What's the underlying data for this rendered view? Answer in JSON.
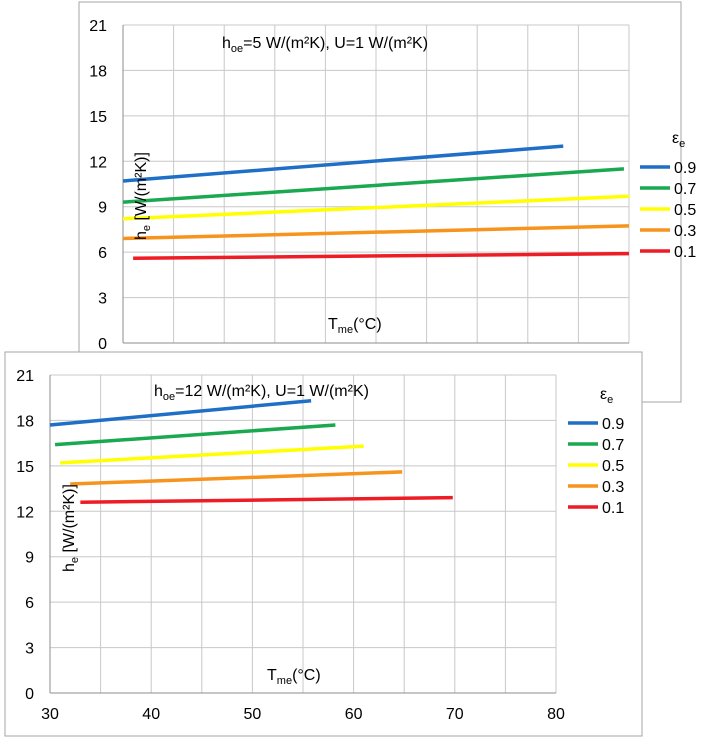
{
  "chart_data": [
    {
      "type": "line",
      "title": "",
      "annotation": {
        "h": "h",
        "sub": "oe",
        "text": "=5 W/(m²K), U=1  W/(m²K)"
      },
      "ylabel": {
        "h": "h",
        "sub": "e",
        "text": " [W/(m²K)]"
      },
      "xlabel": {
        "t": "T",
        "sub": "me",
        "text": "(°C)"
      },
      "xlim": [
        30,
        80
      ],
      "ylim": [
        0,
        21
      ],
      "yticks": [
        "0",
        "3",
        "6",
        "9",
        "12",
        "15",
        "18",
        "21"
      ],
      "xticks": [],
      "grid": true,
      "legend": {
        "title": "ε",
        "title_sub": "e",
        "placement": "right"
      },
      "series": [
        {
          "name": "0.9",
          "color": "#1f6fc6",
          "x": [
            30,
            73.5
          ],
          "y": [
            10.7,
            13.0
          ]
        },
        {
          "name": "0.7",
          "color": "#1aa850",
          "x": [
            30,
            79.5
          ],
          "y": [
            9.3,
            11.5
          ]
        },
        {
          "name": "0.5",
          "color": "#ffff00",
          "x": [
            30,
            90.5
          ],
          "y": [
            8.2,
            10.0
          ]
        },
        {
          "name": "0.3",
          "color": "#f7941d",
          "x": [
            30,
            96
          ],
          "y": [
            6.9,
            8.0
          ]
        },
        {
          "name": "0.1",
          "color": "#ee1c25",
          "x": [
            31,
            96
          ],
          "y": [
            5.6,
            6.0
          ]
        }
      ]
    },
    {
      "type": "line",
      "title": "",
      "annotation": {
        "h": "h",
        "sub": "oe",
        "text": "=12 W/(m²K), U=1  W/(m²K)"
      },
      "ylabel": {
        "h": "h",
        "sub": "e",
        "text": " [W/(m²K)]"
      },
      "xlabel": {
        "t": "T",
        "sub": "me",
        "text": "(°C)"
      },
      "xlim": [
        30,
        80
      ],
      "ylim": [
        0,
        21
      ],
      "yticks": [
        "0",
        "3",
        "6",
        "9",
        "12",
        "15",
        "18",
        "21"
      ],
      "xticks": [
        "30",
        "40",
        "50",
        "60",
        "70",
        "80"
      ],
      "grid": true,
      "legend": {
        "title": "ε",
        "title_sub": "e",
        "placement": "right"
      },
      "series": [
        {
          "name": "0.9",
          "color": "#1f6fc6",
          "x": [
            30,
            55.8
          ],
          "y": [
            17.7,
            19.3
          ]
        },
        {
          "name": "0.7",
          "color": "#1aa850",
          "x": [
            30.5,
            58.2
          ],
          "y": [
            16.4,
            17.7
          ]
        },
        {
          "name": "0.5",
          "color": "#ffff00",
          "x": [
            31,
            61
          ],
          "y": [
            15.2,
            16.3
          ]
        },
        {
          "name": "0.3",
          "color": "#f7941d",
          "x": [
            32,
            64.8
          ],
          "y": [
            13.8,
            14.6
          ]
        },
        {
          "name": "0.1",
          "color": "#ee1c25",
          "x": [
            33,
            69.8
          ],
          "y": [
            12.6,
            12.9
          ]
        }
      ]
    }
  ]
}
